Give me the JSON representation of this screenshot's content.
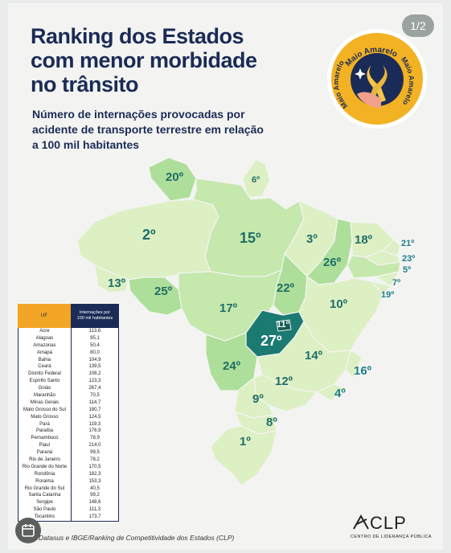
{
  "page_indicator": "1/2",
  "title": [
    "Ranking dos Estados",
    "com menor morbidade",
    "no trânsito"
  ],
  "subtitle": [
    "Número de internações provocadas por",
    "acidente de transporte terrestre em relação",
    "a 100 mil habitantes"
  ],
  "badge": {
    "text_top": "Maio Amarelo",
    "text_left": "Maio Amarelo",
    "text_right": "Maio Amarelo"
  },
  "colors": {
    "title": "#1b2b57",
    "badge_ring": "#f3b223",
    "badge_inner": "#1b2b57",
    "map_light": "#ddf0c4",
    "map_mid": "#aedf9a",
    "map_dark": "#1b7a72",
    "table_header_left": "#f3a526",
    "table_header_right": "#1b2b57"
  },
  "map_ranks": {
    "rr": "20º",
    "ap": "6º",
    "am": "2º",
    "pa": "15º",
    "ma": "3º",
    "pi": "26º",
    "ce": "18º",
    "rn": "21º",
    "pb": "23º",
    "pe": "5º",
    "al": "7º",
    "se": "19º",
    "ac": "13º",
    "ro": "25º",
    "to": "22º",
    "ba": "10º",
    "mt": "17º",
    "go": "27º",
    "df": "11º",
    "mg": "14º",
    "ms": "24º",
    "es": "16º",
    "rj": "4º",
    "sp": "12º",
    "pr": "9º",
    "sc": "8º",
    "rs": "1º"
  },
  "table": {
    "header_uf": "UF",
    "header_value": [
      "Internações por",
      "100 mil habitantes"
    ],
    "rows": [
      [
        "Acre",
        "113,6"
      ],
      [
        "Alagoas",
        "95,1"
      ],
      [
        "Amazonas",
        "50,4"
      ],
      [
        "Amapá",
        "80,0"
      ],
      [
        "Bahia",
        "104,9"
      ],
      [
        "Ceará",
        "139,5"
      ],
      [
        "Distrito Federal",
        "108,2"
      ],
      [
        "Espírito Santo",
        "123,3"
      ],
      [
        "Goiás",
        "267,4"
      ],
      [
        "Maranhão",
        "70,5"
      ],
      [
        "Minas Gerais",
        "114,7"
      ],
      [
        "Mato Grosso do Sul",
        "180,7"
      ],
      [
        "Mato Grosso",
        "124,5"
      ],
      [
        "Pará",
        "119,3"
      ],
      [
        "Paraíba",
        "176,9"
      ],
      [
        "Pernambuco",
        "78,9"
      ],
      [
        "Piauí",
        "214,0"
      ],
      [
        "Paraná",
        "99,5"
      ],
      [
        "Rio de Janeiro",
        "78,2"
      ],
      [
        "Rio Grande do Norte",
        "170,5"
      ],
      [
        "Rondônia",
        "182,3"
      ],
      [
        "Roraima",
        "153,3"
      ],
      [
        "Rio Grande do Sul",
        "40,5"
      ],
      [
        "Santa Catarina",
        "99,2"
      ],
      [
        "Sergipe",
        "148,6"
      ],
      [
        "São Paulo",
        "111,3"
      ],
      [
        "Tocantins",
        "173,7"
      ]
    ]
  },
  "footnote": "Datasus e IBGE/Ranking de Competitividade dos Estados (CLP)",
  "logo": {
    "name": "CLP",
    "subtitle": "CENTRO DE LIDERANÇA PÚBLICA"
  }
}
